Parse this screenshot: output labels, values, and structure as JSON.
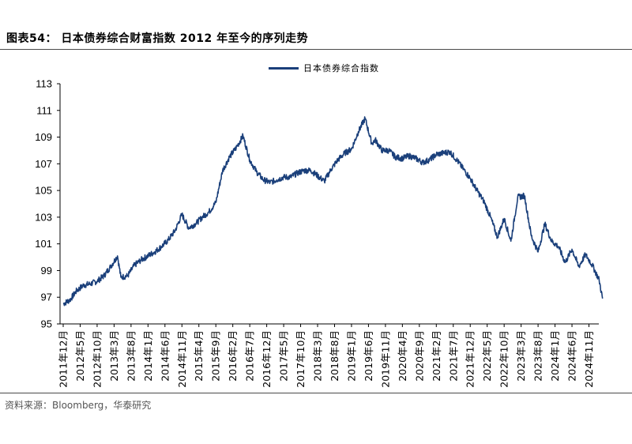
{
  "header": {
    "title": "图表54：  日本债券综合财富指数 2012 年至今的序列走势"
  },
  "footer": {
    "source": "资料来源：Bloomberg，华泰研究"
  },
  "chart_data": {
    "type": "line",
    "title": "",
    "xlabel": "",
    "ylabel": "",
    "ylim": [
      95,
      113
    ],
    "yticks": [
      95,
      97,
      99,
      101,
      103,
      105,
      107,
      109,
      111,
      113
    ],
    "grid": false,
    "legend_position": "top-center",
    "color": "#1a3f7a",
    "xtick_labels": [
      "2011年12月",
      "2012年5月",
      "2012年10月",
      "2013年3月",
      "2013年8月",
      "2014年1月",
      "2014年6月",
      "2014年11月",
      "2015年4月",
      "2015年9月",
      "2016年2月",
      "2016年7月",
      "2016年12月",
      "2017年5月",
      "2017年10月",
      "2018年3月",
      "2018年8月",
      "2019年1月",
      "2019年6月",
      "2019年11月",
      "2020年4月",
      "2020年9月",
      "2021年2月",
      "2021年7月",
      "2021年12月",
      "2022年5月",
      "2022年10月",
      "2023年3月",
      "2023年8月",
      "2024年1月",
      "2024年6月",
      "2024年11月"
    ],
    "series": [
      {
        "name": "日本债券综合指数",
        "x": [
          "2011-12",
          "2012-02",
          "2012-04",
          "2012-06",
          "2012-08",
          "2012-10",
          "2012-12",
          "2013-02",
          "2013-04",
          "2013-05",
          "2013-07",
          "2013-09",
          "2013-11",
          "2014-01",
          "2014-03",
          "2014-05",
          "2014-07",
          "2014-09",
          "2014-11",
          "2015-01",
          "2015-03",
          "2015-05",
          "2015-07",
          "2015-09",
          "2015-11",
          "2016-01",
          "2016-03",
          "2016-05",
          "2016-07",
          "2016-09",
          "2016-11",
          "2017-01",
          "2017-03",
          "2017-05",
          "2017-07",
          "2017-09",
          "2017-11",
          "2018-01",
          "2018-03",
          "2018-05",
          "2018-07",
          "2018-09",
          "2018-11",
          "2019-01",
          "2019-03",
          "2019-05",
          "2019-07",
          "2019-08",
          "2019-10",
          "2019-12",
          "2020-02",
          "2020-04",
          "2020-06",
          "2020-08",
          "2020-10",
          "2020-12",
          "2021-02",
          "2021-04",
          "2021-06",
          "2021-08",
          "2021-10",
          "2021-12",
          "2022-02",
          "2022-04",
          "2022-06",
          "2022-08",
          "2022-10",
          "2022-12",
          "2023-02",
          "2023-04",
          "2023-06",
          "2023-08",
          "2023-10",
          "2023-12",
          "2024-02",
          "2024-04",
          "2024-06",
          "2024-08",
          "2024-10",
          "2024-12",
          "2025-02",
          "2025-03"
        ],
        "values": [
          96.5,
          96.8,
          97.5,
          97.9,
          98.0,
          98.2,
          98.6,
          99.3,
          100.1,
          98.5,
          98.6,
          99.4,
          99.8,
          100.1,
          100.4,
          100.8,
          101.3,
          102.0,
          103.2,
          102.2,
          102.5,
          103.0,
          103.4,
          104.1,
          106.5,
          107.5,
          108.2,
          109.1,
          107.3,
          106.4,
          105.8,
          105.6,
          105.8,
          106.0,
          106.0,
          106.3,
          106.5,
          106.5,
          106.1,
          105.7,
          106.6,
          107.3,
          107.8,
          108.1,
          109.4,
          110.4,
          108.5,
          108.8,
          108.0,
          108.0,
          107.5,
          107.4,
          107.6,
          107.4,
          107.1,
          107.3,
          107.7,
          107.8,
          107.9,
          107.3,
          106.6,
          105.9,
          105.0,
          104.2,
          103.0,
          101.5,
          102.9,
          101.2,
          104.5,
          104.6,
          101.6,
          100.4,
          102.5,
          101.2,
          100.8,
          99.6,
          100.6,
          99.3,
          100.2,
          99.4,
          98.3,
          96.9
        ]
      }
    ]
  }
}
